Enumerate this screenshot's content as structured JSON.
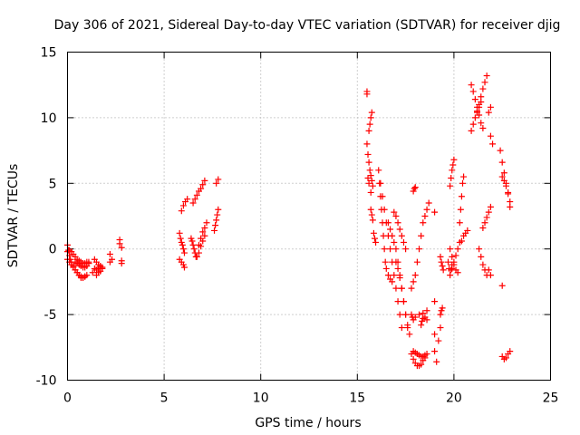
{
  "chart_data": {
    "type": "scatter",
    "title": "Day 306 of 2021, Sidereal Day-to-day VTEC variation (SDTVAR) for receiver djig",
    "xlabel": "GPS time / hours",
    "ylabel": "SDTVAR / TECUs",
    "xlim": [
      0,
      25
    ],
    "ylim": [
      -10,
      15
    ],
    "x_ticks": [
      0,
      5,
      10,
      15,
      20,
      25
    ],
    "y_ticks": [
      -10,
      -5,
      0,
      5,
      10,
      15
    ],
    "x_tick_labels": [
      "0",
      "5",
      "10",
      "15",
      "20",
      "25"
    ],
    "y_tick_labels": [
      "-10",
      "-5",
      "0",
      "5",
      "10",
      "15"
    ],
    "grid": true,
    "legend": "none",
    "marker": "+",
    "color": "#ff0000",
    "segments": [
      {
        "x": [
          0.0,
          0.05,
          0.1,
          0.15,
          0.2,
          0.3,
          0.4,
          0.5,
          0.6,
          0.7,
          0.8,
          0.9
        ],
        "y": [
          0.3,
          -0.1,
          -0.5,
          -0.8,
          -1.0,
          -1.3,
          -1.6,
          -1.8,
          -2.0,
          -2.1,
          -2.2,
          -2.1
        ]
      },
      {
        "x": [
          0.0,
          0.1,
          0.2,
          0.3,
          0.4,
          0.5,
          0.6,
          0.7,
          0.8,
          0.9,
          1.0
        ],
        "y": [
          -0.8,
          -1.0,
          -1.2,
          -1.4,
          -1.6,
          -1.8,
          -2.0,
          -2.2,
          -2.2,
          -2.1,
          -2.0
        ]
      },
      {
        "x": [
          0.0,
          0.1,
          0.2,
          0.3,
          0.4,
          0.5,
          0.6,
          0.7,
          0.8,
          0.9,
          1.0,
          1.1
        ],
        "y": [
          -0.2,
          -0.1,
          -0.2,
          -0.4,
          -0.6,
          -0.8,
          -0.9,
          -1.0,
          -1.1,
          -1.1,
          -1.0,
          -1.0
        ]
      },
      {
        "x": [
          0.4,
          0.5,
          0.6,
          0.7,
          0.8,
          0.9,
          1.0,
          1.1
        ],
        "y": [
          -1.0,
          -1.1,
          -1.2,
          -1.3,
          -1.4,
          -1.4,
          -1.3,
          -1.1
        ]
      },
      {
        "x": [
          1.3,
          1.4,
          1.5,
          1.6,
          1.7
        ],
        "y": [
          -1.8,
          -1.5,
          -1.6,
          -1.4,
          -1.5
        ]
      },
      {
        "x": [
          1.4,
          1.5,
          1.6,
          1.7,
          1.8
        ],
        "y": [
          -0.8,
          -1.0,
          -1.2,
          -1.3,
          -1.4
        ]
      },
      {
        "x": [
          1.5,
          1.6,
          1.7,
          1.8
        ],
        "y": [
          -2.0,
          -1.8,
          -1.7,
          -1.5
        ]
      },
      {
        "x": [
          2.2,
          2.2,
          2.3
        ],
        "y": [
          -0.4,
          -1.0,
          -0.8
        ]
      },
      {
        "x": [
          2.7,
          2.7,
          2.8,
          2.8,
          2.8
        ],
        "y": [
          0.7,
          0.4,
          0.1,
          -0.9,
          -1.1
        ]
      },
      {
        "x": [
          5.8,
          5.85,
          5.9,
          5.95,
          6.0,
          6.05
        ],
        "y": [
          1.2,
          0.8,
          0.5,
          0.3,
          0.0,
          -0.3
        ]
      },
      {
        "x": [
          5.8,
          5.9,
          6.0,
          6.05
        ],
        "y": [
          -0.8,
          -1.0,
          -1.2,
          -1.4
        ]
      },
      {
        "x": [
          5.9,
          6.0,
          6.1,
          6.2
        ],
        "y": [
          2.9,
          3.3,
          3.6,
          3.8
        ]
      },
      {
        "x": [
          6.4,
          6.45,
          6.5,
          6.55,
          6.6,
          6.65
        ],
        "y": [
          0.8,
          0.6,
          0.3,
          0.0,
          -0.3,
          -0.6
        ]
      },
      {
        "x": [
          6.5,
          6.6,
          6.7,
          6.8,
          6.9,
          7.0,
          7.1
        ],
        "y": [
          3.5,
          3.8,
          4.1,
          4.4,
          4.6,
          4.9,
          5.2
        ]
      },
      {
        "x": [
          6.7,
          6.8,
          6.9,
          7.0,
          7.1
        ],
        "y": [
          -0.6,
          -0.3,
          0.2,
          0.6,
          1.0
        ]
      },
      {
        "x": [
          6.8,
          6.9,
          7.0,
          7.1,
          7.2
        ],
        "y": [
          0.3,
          0.8,
          1.3,
          1.6,
          2.0
        ]
      },
      {
        "x": [
          7.6,
          7.65,
          7.7,
          7.75,
          7.8
        ],
        "y": [
          1.4,
          1.8,
          2.2,
          2.6,
          3.0
        ]
      },
      {
        "x": [
          7.7,
          7.8
        ],
        "y": [
          5.0,
          5.3
        ]
      },
      {
        "x": [
          15.5,
          15.5
        ],
        "y": [
          12.0,
          11.8
        ]
      },
      {
        "x": [
          15.6,
          15.65,
          15.7,
          15.75
        ],
        "y": [
          9.0,
          9.5,
          10.0,
          10.4
        ]
      },
      {
        "x": [
          15.5,
          15.55,
          15.6,
          15.65,
          15.7,
          15.75,
          15.8
        ],
        "y": [
          8.0,
          7.2,
          6.6,
          6.0,
          5.6,
          5.2,
          4.8
        ]
      },
      {
        "x": [
          15.55,
          15.6,
          15.7
        ],
        "y": [
          5.4,
          5.0,
          4.3
        ]
      },
      {
        "x": [
          15.7,
          15.75,
          15.8
        ],
        "y": [
          3.0,
          2.6,
          2.2
        ]
      },
      {
        "x": [
          15.85,
          15.9,
          15.95
        ],
        "y": [
          1.2,
          0.8,
          0.5
        ]
      },
      {
        "x": [
          16.1,
          16.15,
          16.2,
          16.25,
          16.3,
          16.35,
          16.4,
          16.45,
          16.5,
          16.6,
          16.7,
          16.8
        ],
        "y": [
          6.0,
          5.0,
          4.0,
          3.0,
          2.0,
          1.0,
          0.0,
          -1.0,
          -1.5,
          -2.0,
          -2.3,
          -2.5
        ]
      },
      {
        "x": [
          16.2,
          16.3,
          16.4,
          16.5,
          16.6,
          16.7,
          16.8,
          16.9,
          17.0,
          17.1,
          17.2,
          17.3
        ],
        "y": [
          5.0,
          4.0,
          3.0,
          2.0,
          1.0,
          0.0,
          -1.0,
          -2.0,
          -3.0,
          -4.0,
          -5.0,
          -6.0
        ]
      },
      {
        "x": [
          16.6,
          16.7,
          16.8,
          16.9,
          17.0,
          17.1,
          17.2,
          17.3,
          17.4,
          17.5,
          17.6
        ],
        "y": [
          2.0,
          1.5,
          1.0,
          0.5,
          0.0,
          -1.0,
          -2.0,
          -3.0,
          -4.0,
          -5.0,
          -6.0
        ]
      },
      {
        "x": [
          16.9,
          17.0,
          17.1,
          17.2,
          17.3,
          17.4,
          17.5
        ],
        "y": [
          2.8,
          2.5,
          2.0,
          1.5,
          1.0,
          0.5,
          0.0
        ]
      },
      {
        "x": [
          17.0,
          17.1,
          17.2,
          17.3,
          17.4,
          17.5,
          17.6,
          17.7
        ],
        "y": [
          -1.0,
          -1.5,
          -2.2,
          -3.0,
          -4.0,
          -5.0,
          -5.8,
          -6.5
        ]
      },
      {
        "x": [
          17.8,
          17.85,
          17.9
        ],
        "y": [
          -5.0,
          -5.2,
          -5.4
        ]
      },
      {
        "x": [
          17.8,
          17.9,
          18.0,
          18.1,
          18.2,
          18.3,
          18.4,
          18.5,
          18.6,
          18.7
        ],
        "y": [
          -3.0,
          -2.5,
          -2.0,
          -1.0,
          0.0,
          1.0,
          2.0,
          2.5,
          3.0,
          3.5
        ]
      },
      {
        "x": [
          17.9,
          17.95,
          18.0
        ],
        "y": [
          4.4,
          4.6,
          4.7
        ]
      },
      {
        "x": [
          18.0,
          18.2,
          18.4,
          18.6
        ],
        "y": [
          -5.2,
          -5.0,
          -4.9,
          -4.7
        ]
      },
      {
        "x": [
          17.8,
          17.9,
          18.0,
          18.1,
          18.2,
          18.3,
          18.4,
          18.5,
          18.6
        ],
        "y": [
          -8.0,
          -8.4,
          -8.7,
          -8.9,
          -8.9,
          -8.8,
          -8.5,
          -8.3,
          -8.0
        ]
      },
      {
        "x": [
          17.9,
          18.0,
          18.1,
          18.2,
          18.3,
          18.4,
          18.5
        ],
        "y": [
          -7.8,
          -7.9,
          -8.0,
          -8.1,
          -8.2,
          -8.2,
          -8.1
        ]
      },
      {
        "x": [
          18.3,
          18.35,
          18.4,
          18.5,
          18.6
        ],
        "y": [
          -5.8,
          -5.5,
          -5.3,
          -5.2,
          -5.4
        ]
      },
      {
        "x": [
          19.0,
          19.0,
          19.0,
          19.0
        ],
        "y": [
          2.8,
          -4.0,
          -6.5,
          -7.8
        ]
      },
      {
        "x": [
          19.1,
          19.2,
          19.3
        ],
        "y": [
          -8.6,
          -7.0,
          -6.0
        ]
      },
      {
        "x": [
          19.3,
          19.35,
          19.4
        ],
        "y": [
          -5.0,
          -4.7,
          -4.5
        ]
      },
      {
        "x": [
          19.3,
          19.35,
          19.4,
          19.45
        ],
        "y": [
          -0.6,
          -1.0,
          -1.3,
          -1.6
        ]
      },
      {
        "x": [
          19.7,
          19.75,
          19.8,
          19.85,
          19.9
        ],
        "y": [
          -1.0,
          -1.5,
          -2.0,
          -1.6,
          -1.2
        ]
      },
      {
        "x": [
          19.8,
          19.85,
          19.9,
          19.95,
          20.0
        ],
        "y": [
          4.8,
          5.4,
          6.0,
          6.4,
          6.8
        ]
      },
      {
        "x": [
          19.8,
          19.9,
          20.0,
          20.1,
          20.2
        ],
        "y": [
          0.0,
          -0.6,
          -1.2,
          -1.6,
          -1.8
        ]
      },
      {
        "x": [
          19.9,
          20.0,
          20.1,
          20.2,
          20.3
        ],
        "y": [
          -1.5,
          -1.0,
          -0.5,
          0.0,
          0.5
        ]
      },
      {
        "x": [
          20.3,
          20.35,
          20.4,
          20.45,
          20.5
        ],
        "y": [
          2.0,
          3.0,
          4.0,
          5.0,
          5.5
        ]
      },
      {
        "x": [
          20.4,
          20.5,
          20.6,
          20.7
        ],
        "y": [
          0.6,
          1.0,
          1.2,
          1.4
        ]
      },
      {
        "x": [
          20.9,
          21.0,
          21.1,
          21.2,
          21.3,
          21.4,
          21.5
        ],
        "y": [
          12.5,
          12.0,
          11.4,
          10.8,
          10.2,
          9.6,
          9.2
        ]
      },
      {
        "x": [
          20.9,
          21.0,
          21.1,
          21.2,
          21.3,
          21.4
        ],
        "y": [
          9.0,
          9.5,
          10.0,
          10.4,
          10.8,
          11.2
        ]
      },
      {
        "x": [
          21.2,
          21.3,
          21.4,
          21.5,
          21.6,
          21.7
        ],
        "y": [
          10.5,
          11.0,
          11.6,
          12.2,
          12.7,
          13.2
        ]
      },
      {
        "x": [
          21.3,
          21.4,
          21.5,
          21.6,
          21.7
        ],
        "y": [
          0.0,
          -0.6,
          -1.2,
          -1.6,
          -2.0
        ]
      },
      {
        "x": [
          21.5,
          21.6,
          21.7,
          21.8,
          21.9
        ],
        "y": [
          1.6,
          2.0,
          2.4,
          2.8,
          3.2
        ]
      },
      {
        "x": [
          21.8,
          21.9
        ],
        "y": [
          10.4,
          10.8
        ]
      },
      {
        "x": [
          21.9,
          22.0
        ],
        "y": [
          8.6,
          8.0
        ]
      },
      {
        "x": [
          21.8,
          21.9
        ],
        "y": [
          -1.6,
          -2.0
        ]
      },
      {
        "x": [
          22.4,
          22.5,
          22.6,
          22.7,
          22.8,
          22.9
        ],
        "y": [
          7.5,
          6.6,
          5.8,
          5.0,
          4.2,
          3.2
        ]
      },
      {
        "x": [
          22.5,
          22.6,
          22.7,
          22.8,
          22.9
        ],
        "y": [
          5.5,
          5.2,
          4.8,
          4.3,
          3.6
        ]
      },
      {
        "x": [
          22.5
        ],
        "y": [
          -2.8
        ]
      },
      {
        "x": [
          22.5,
          22.6,
          22.7,
          22.8,
          22.9
        ],
        "y": [
          -8.2,
          -8.4,
          -8.3,
          -8.0,
          -7.8
        ]
      }
    ]
  }
}
